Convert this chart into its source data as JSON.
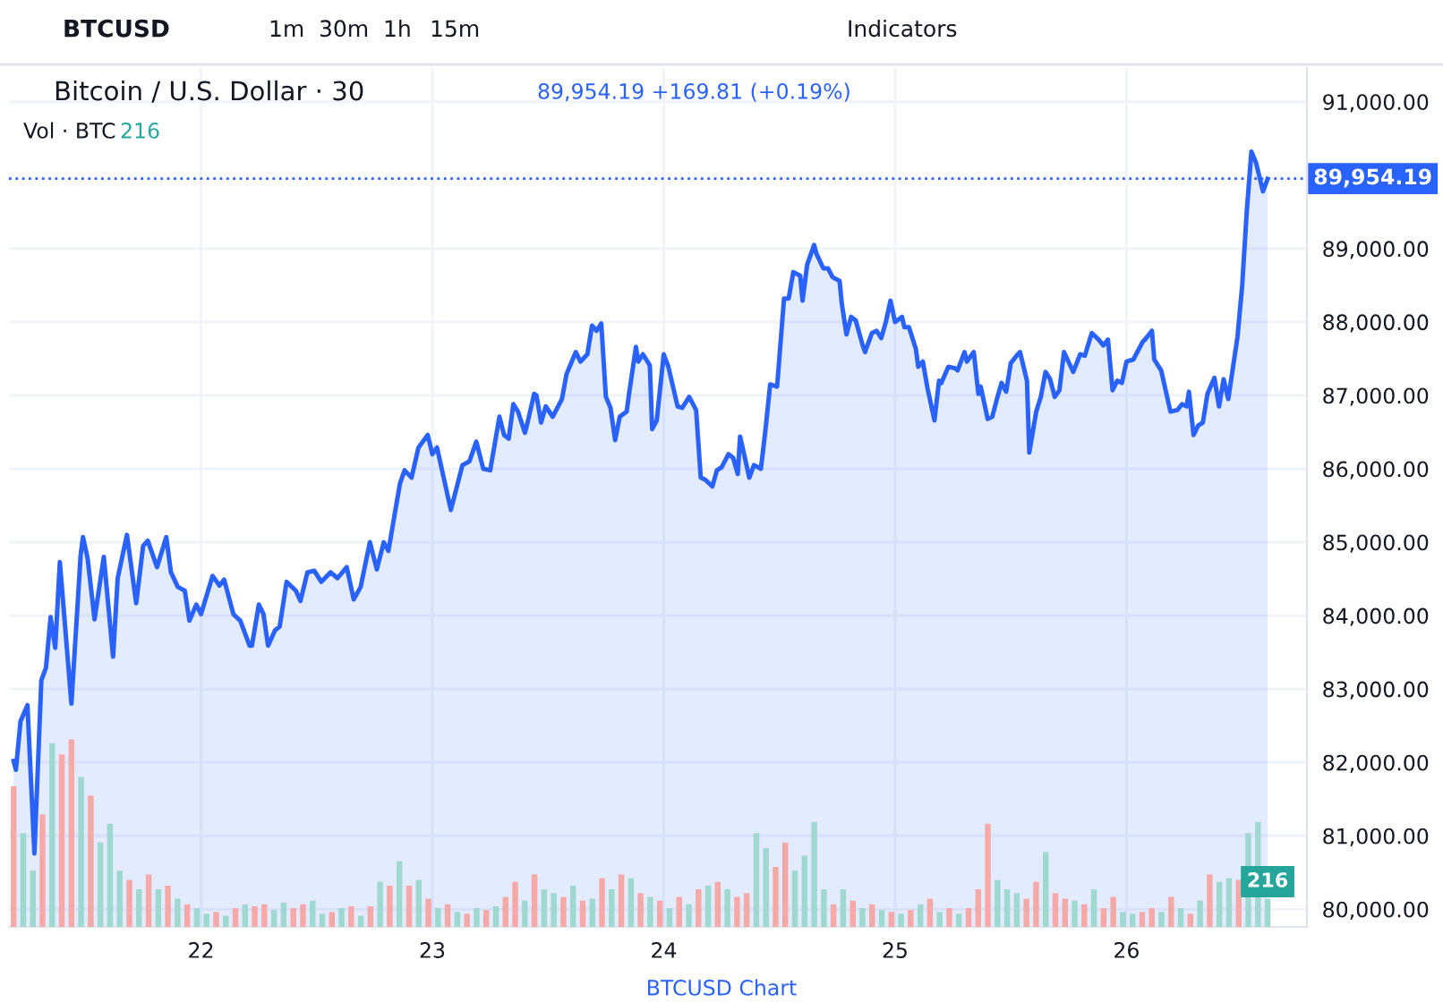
{
  "chart_data": [
    {
      "type": "area",
      "title": "Bitcoin / U.S. Dollar · 30",
      "subtitle": "89,954.19 +169.81 (+0.19%)",
      "annotations": [
        "BTCUSD",
        "1m",
        "30m",
        "1h",
        "15m",
        "Indicators",
        "BTCUSD Chart"
      ],
      "xlim": [
        21.17,
        26.78
      ],
      "xticks": [
        22,
        23,
        24,
        25,
        26
      ],
      "ylim": [
        79760,
        91460
      ],
      "yticks": [
        {
          "value": 80000,
          "label": "80,000.00"
        },
        {
          "value": 81000,
          "label": "81,000.00"
        },
        {
          "value": 82000,
          "label": "82,000.00"
        },
        {
          "value": 83000,
          "label": "83,000.00"
        },
        {
          "value": 84000,
          "label": "84,000.00"
        },
        {
          "value": 85000,
          "label": "85,000.00"
        },
        {
          "value": 86000,
          "label": "86,000.00"
        },
        {
          "value": 87000,
          "label": "87,000.00"
        },
        {
          "value": 88000,
          "label": "88,000.00"
        },
        {
          "value": 89000,
          "label": "89,000.00"
        },
        {
          "value": 91000,
          "label": "91,000.00"
        }
      ],
      "grid": true,
      "ref_lines": [
        {
          "axis": "y",
          "value": 89954.19,
          "label": "89,954.19",
          "color": "#2962ff",
          "line_style": "dotted"
        }
      ],
      "series": [
        {
          "color": "#2962ff",
          "x": [
            21.19,
            21.2,
            21.22,
            21.25,
            21.28,
            21.31,
            21.33,
            21.35,
            21.37,
            21.39,
            21.44,
            21.48,
            21.49,
            21.51,
            21.54,
            21.58,
            21.62,
            21.64,
            21.68,
            21.72,
            21.75,
            21.77,
            21.81,
            21.85,
            21.87,
            21.9,
            21.93,
            21.95,
            21.98,
            22.0,
            22.05,
            22.08,
            22.1,
            22.14,
            22.17,
            22.21,
            22.22,
            22.25,
            22.27,
            22.29,
            22.32,
            22.34,
            22.37,
            22.41,
            22.43,
            22.46,
            22.49,
            22.52,
            22.56,
            22.59,
            22.63,
            22.66,
            22.69,
            22.73,
            22.76,
            22.79,
            22.81,
            22.86,
            22.88,
            22.91,
            22.94,
            22.98,
            23.0,
            23.02,
            23.08,
            23.13,
            23.16,
            23.19,
            23.22,
            23.25,
            23.29,
            23.31,
            23.33,
            23.35,
            23.37,
            23.4,
            23.41,
            23.44,
            23.45,
            23.47,
            23.49,
            23.52,
            23.56,
            23.58,
            23.62,
            23.64,
            23.67,
            23.69,
            23.71,
            23.73,
            23.75,
            23.77,
            23.79,
            23.81,
            23.84,
            23.85,
            23.88,
            23.89,
            23.91,
            23.94,
            23.95,
            23.97,
            24.0,
            24.02,
            24.06,
            24.08,
            24.11,
            24.14,
            24.16,
            24.18,
            24.21,
            24.23,
            24.25,
            24.28,
            24.3,
            24.32,
            24.33,
            24.37,
            24.39,
            24.42,
            24.44,
            24.46,
            24.49,
            24.52,
            24.54,
            24.56,
            24.59,
            24.6,
            24.62,
            24.65,
            24.66,
            24.69,
            24.71,
            24.73,
            24.76,
            24.77,
            24.79,
            24.81,
            24.83,
            24.86,
            24.87,
            24.9,
            24.92,
            24.94,
            24.96,
            24.98,
            25.0,
            25.03,
            25.04,
            25.06,
            25.09,
            25.1,
            25.12,
            25.14,
            25.17,
            25.19,
            25.2,
            25.23,
            25.26,
            25.27,
            25.3,
            25.31,
            25.34,
            25.36,
            25.37,
            25.4,
            25.42,
            25.44,
            25.46,
            25.48,
            25.5,
            25.53,
            25.54,
            25.57,
            25.58,
            25.61,
            25.63,
            25.65,
            25.67,
            25.69,
            25.71,
            25.73,
            25.77,
            25.8,
            25.82,
            25.85,
            25.88,
            25.9,
            25.92,
            25.94,
            25.96,
            25.98,
            26.0,
            26.03,
            26.07,
            26.08,
            26.11,
            26.12,
            26.15,
            26.19,
            26.22,
            26.24,
            26.26,
            26.27,
            26.29,
            26.31,
            26.33,
            26.35,
            26.38,
            26.4,
            26.42,
            26.44,
            26.48,
            26.5,
            26.52,
            26.54,
            26.56,
            26.59,
            26.61
          ],
          "values": [
            82020,
            81900,
            82560,
            82780,
            80760,
            83120,
            83290,
            83980,
            83560,
            84730,
            82800,
            84830,
            85070,
            84780,
            83950,
            84800,
            83440,
            84510,
            85100,
            84170,
            84950,
            85020,
            84660,
            85070,
            84590,
            84390,
            84340,
            83930,
            84150,
            84020,
            84540,
            84410,
            84490,
            84020,
            83930,
            83590,
            83590,
            84150,
            84020,
            83590,
            83800,
            83850,
            84460,
            84340,
            84200,
            84590,
            84610,
            84460,
            84590,
            84510,
            84660,
            84220,
            84390,
            85000,
            84630,
            85000,
            84880,
            85800,
            85980,
            85880,
            86290,
            86460,
            86200,
            86290,
            85440,
            86050,
            86100,
            86370,
            86000,
            85980,
            86710,
            86460,
            86410,
            86880,
            86780,
            86490,
            86610,
            87020,
            87000,
            86630,
            86850,
            86710,
            86950,
            87290,
            87590,
            87460,
            87560,
            87950,
            87880,
            87980,
            86980,
            86830,
            86390,
            86710,
            86780,
            87020,
            87660,
            87460,
            87560,
            87410,
            86540,
            86660,
            87560,
            87390,
            86850,
            86830,
            86980,
            86800,
            85880,
            85850,
            85760,
            85980,
            86020,
            86200,
            86150,
            85930,
            86440,
            85880,
            86050,
            86000,
            86540,
            87150,
            87120,
            88320,
            88320,
            88680,
            88630,
            88290,
            88780,
            89050,
            88930,
            88730,
            88730,
            88610,
            88560,
            88240,
            87830,
            88070,
            88020,
            87680,
            87590,
            87850,
            87880,
            87780,
            88000,
            88290,
            88000,
            88070,
            87930,
            87930,
            87630,
            87390,
            87460,
            87100,
            86660,
            87200,
            87170,
            87390,
            87370,
            87340,
            87590,
            87460,
            87590,
            87020,
            87120,
            86680,
            86710,
            86950,
            87170,
            87050,
            87440,
            87560,
            87590,
            87200,
            86220,
            86780,
            86980,
            87320,
            87220,
            86980,
            87070,
            87590,
            87320,
            87560,
            87540,
            87850,
            87760,
            87680,
            87760,
            87070,
            87200,
            87170,
            87460,
            87490,
            87730,
            87760,
            87880,
            87490,
            87340,
            86780,
            86800,
            86880,
            86850,
            87050,
            86460,
            86590,
            86630,
            87020,
            87240,
            86850,
            87220,
            86950,
            87800,
            88490,
            89510,
            90320,
            90170,
            89780,
            89950
          ]
        }
      ]
    },
    {
      "type": "bar",
      "title": "Vol · BTC",
      "annotations": [
        "216"
      ],
      "tick_labels": false,
      "categories": [
        null,
        null,
        null,
        null,
        null,
        null,
        null,
        null,
        null,
        null,
        null,
        null,
        null,
        null,
        null,
        null,
        null,
        null,
        null,
        null,
        null,
        null,
        null,
        null,
        null,
        null,
        null,
        null,
        null,
        null,
        null,
        null,
        null,
        null,
        null,
        null,
        null,
        null,
        null,
        null,
        null,
        null,
        null,
        null,
        null,
        null,
        null,
        null,
        null,
        null,
        null,
        null,
        null,
        null,
        null,
        null,
        null,
        null,
        null,
        null,
        null,
        null,
        null,
        null,
        null,
        null,
        null,
        null,
        null,
        null,
        null,
        null,
        null,
        null,
        null,
        null,
        null,
        null,
        null,
        null,
        null,
        null,
        null,
        null,
        null,
        null,
        null,
        null,
        null,
        null,
        null,
        null,
        null,
        null,
        null,
        null,
        null,
        null,
        null,
        null,
        null,
        null,
        null,
        null,
        null,
        null,
        null,
        null,
        null,
        null,
        null,
        null,
        null,
        null,
        null,
        null,
        null,
        null,
        null,
        null,
        null,
        null,
        null,
        null,
        null,
        null,
        null,
        null,
        null,
        null,
        null
      ],
      "values": [
        1080,
        720,
        432,
        864,
        1411,
        1325,
        1440,
        1152,
        1008,
        648,
        792,
        432,
        360,
        288,
        403,
        288,
        317,
        216,
        173,
        144,
        101,
        115,
        86,
        144,
        173,
        158,
        173,
        130,
        187,
        144,
        173,
        202,
        101,
        115,
        144,
        158,
        86,
        158,
        346,
        317,
        504,
        317,
        360,
        216,
        144,
        173,
        115,
        101,
        144,
        130,
        158,
        230,
        346,
        202,
        403,
        288,
        259,
        230,
        317,
        202,
        216,
        374,
        288,
        403,
        374,
        259,
        230,
        202,
        144,
        230,
        173,
        288,
        317,
        346,
        288,
        230,
        259,
        720,
        605,
        461,
        648,
        432,
        547,
        806,
        288,
        173,
        288,
        202,
        144,
        173,
        130,
        115,
        101,
        130,
        173,
        216,
        115,
        144,
        101,
        144,
        288,
        792,
        360,
        288,
        259,
        216,
        346,
        576,
        259,
        216,
        202,
        173,
        288,
        144,
        230,
        115,
        101,
        115,
        144,
        115,
        230,
        144,
        101,
        202,
        403,
        346,
        374,
        360,
        720,
        806,
        216
      ],
      "value_labels": [
        null,
        null,
        null,
        null,
        null,
        null,
        null,
        null,
        null,
        null,
        null,
        null,
        null,
        null,
        null,
        null,
        null,
        null,
        null,
        null,
        null,
        null,
        null,
        null,
        null,
        null,
        null,
        null,
        null,
        null,
        null,
        null,
        null,
        null,
        null,
        null,
        null,
        null,
        null,
        null,
        null,
        null,
        null,
        null,
        null,
        null,
        null,
        null,
        null,
        null,
        null,
        null,
        null,
        null,
        null,
        null,
        null,
        null,
        null,
        null,
        null,
        null,
        null,
        null,
        null,
        null,
        null,
        null,
        null,
        null,
        null,
        null,
        null,
        null,
        null,
        null,
        null,
        null,
        null,
        null,
        null,
        null,
        null,
        null,
        null,
        null,
        null,
        null,
        null,
        null,
        null,
        null,
        null,
        null,
        null,
        null,
        null,
        null,
        null,
        null,
        null,
        null,
        null,
        null,
        null,
        null,
        null,
        null,
        null,
        null,
        null,
        null,
        null,
        null,
        null,
        null,
        null,
        null,
        null,
        null,
        null,
        null,
        null,
        null,
        null,
        null,
        null,
        null,
        null,
        null,
        "216"
      ],
      "colors": [
        "#f7a9a7",
        "#9fd8cf",
        "#9fd8cf",
        "#f7a9a7",
        "#9fd8cf",
        "#f7a9a7",
        "#f7a9a7",
        "#9fd8cf",
        "#f7a9a7",
        "#9fd8cf",
        "#9fd8cf",
        "#9fd8cf",
        "#f7a9a7",
        "#9fd8cf",
        "#f7a9a7",
        "#9fd8cf",
        "#f7a9a7",
        "#9fd8cf",
        "#f7a9a7",
        "#9fd8cf",
        "#9fd8cf",
        "#f7a9a7",
        "#9fd8cf",
        "#f7a9a7",
        "#9fd8cf",
        "#f7a9a7",
        "#f7a9a7",
        "#9fd8cf",
        "#9fd8cf",
        "#f7a9a7",
        "#f7a9a7",
        "#9fd8cf",
        "#9fd8cf",
        "#f7a9a7",
        "#9fd8cf",
        "#f7a9a7",
        "#9fd8cf",
        "#f7a9a7",
        "#9fd8cf",
        "#f7a9a7",
        "#9fd8cf",
        "#f7a9a7",
        "#9fd8cf",
        "#f7a9a7",
        "#9fd8cf",
        "#f7a9a7",
        "#9fd8cf",
        "#f7a9a7",
        "#9fd8cf",
        "#f7a9a7",
        "#9fd8cf",
        "#f7a9a7",
        "#f7a9a7",
        "#9fd8cf",
        "#f7a9a7",
        "#9fd8cf",
        "#9fd8cf",
        "#f7a9a7",
        "#9fd8cf",
        "#f7a9a7",
        "#9fd8cf",
        "#f7a9a7",
        "#9fd8cf",
        "#f7a9a7",
        "#9fd8cf",
        "#f7a9a7",
        "#9fd8cf",
        "#f7a9a7",
        "#9fd8cf",
        "#f7a9a7",
        "#9fd8cf",
        "#f7a9a7",
        "#9fd8cf",
        "#f7a9a7",
        "#9fd8cf",
        "#f7a9a7",
        "#f7a9a7",
        "#9fd8cf",
        "#9fd8cf",
        "#f7a9a7",
        "#f7a9a7",
        "#9fd8cf",
        "#9fd8cf",
        "#9fd8cf",
        "#9fd8cf",
        "#f7a9a7",
        "#9fd8cf",
        "#f7a9a7",
        "#9fd8cf",
        "#f7a9a7",
        "#9fd8cf",
        "#f7a9a7",
        "#9fd8cf",
        "#f7a9a7",
        "#9fd8cf",
        "#f7a9a7",
        "#9fd8cf",
        "#f7a9a7",
        "#9fd8cf",
        "#f7a9a7",
        "#f7a9a7",
        "#f7a9a7",
        "#9fd8cf",
        "#9fd8cf",
        "#9fd8cf",
        "#f7a9a7",
        "#f7a9a7",
        "#9fd8cf",
        "#f7a9a7",
        "#f7a9a7",
        "#9fd8cf",
        "#f7a9a7",
        "#9fd8cf",
        "#f7a9a7",
        "#f7a9a7",
        "#9fd8cf",
        "#9fd8cf",
        "#f7a9a7",
        "#f7a9a7",
        "#9fd8cf",
        "#f7a9a7",
        "#9fd8cf",
        "#f7a9a7",
        "#9fd8cf",
        "#f7a9a7",
        "#9fd8cf",
        "#9fd8cf",
        "#f7a9a7",
        "#9fd8cf",
        "#9fd8cf",
        "#9fd8cf"
      ]
    }
  ]
}
